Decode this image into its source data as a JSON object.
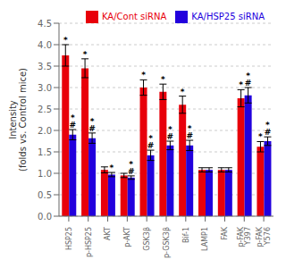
{
  "chart_data": {
    "type": "bar",
    "ylabel": "Intensity\n(folds vs. Control mice)",
    "categories": [
      "HSP25",
      "p-HSP25",
      "AKT",
      "p-AKT",
      "GSK3β",
      "p-GSK3β",
      "Bif-1",
      "LAMP1",
      "FAK",
      "p-FAK\nY397",
      "p-FAK\nY576"
    ],
    "series": [
      {
        "name": "KA/Cont siRNA",
        "color": "#e8000a",
        "values": [
          3.75,
          3.45,
          1.08,
          0.95,
          3.0,
          2.9,
          2.6,
          1.08,
          1.08,
          2.75,
          1.62
        ],
        "errors": [
          0.25,
          0.22,
          0.07,
          0.05,
          0.18,
          0.18,
          0.2,
          0.05,
          0.05,
          0.2,
          0.12
        ],
        "annotations": [
          [
            "*"
          ],
          [
            "*"
          ],
          [],
          [],
          [
            "*"
          ],
          [
            "*"
          ],
          [
            "*"
          ],
          [],
          [],
          [
            "*"
          ],
          [
            "*"
          ]
        ]
      },
      {
        "name": "KA/HSP25 siRNA",
        "color": "#2200dd",
        "values": [
          1.9,
          1.82,
          0.97,
          0.9,
          1.42,
          1.65,
          1.65,
          1.08,
          1.08,
          2.82,
          1.75
        ],
        "errors": [
          0.12,
          0.12,
          0.05,
          0.04,
          0.12,
          0.1,
          0.12,
          0.05,
          0.05,
          0.18,
          0.1
        ],
        "annotations": [
          [
            "#",
            "*"
          ],
          [
            "#",
            "*"
          ],
          [
            "*"
          ],
          [
            "#",
            "*"
          ],
          [
            "#",
            "*"
          ],
          [
            "#",
            "*"
          ],
          [
            "#",
            "*"
          ],
          [],
          [],
          [
            "#",
            "*"
          ],
          [
            "#",
            "*"
          ]
        ]
      }
    ],
    "ylim": [
      0,
      4.5
    ],
    "yticks": [
      {
        "value": 0,
        "label": "0.0"
      },
      0.5,
      {
        "value": 1,
        "label": "1.0"
      },
      1.5,
      {
        "value": 2,
        "label": "2.0"
      },
      2.5,
      {
        "value": 3,
        "label": "3.0"
      },
      3.5,
      {
        "value": 4,
        "label": "4.0"
      },
      4.5
    ],
    "grid": true,
    "legend": "upper right"
  }
}
